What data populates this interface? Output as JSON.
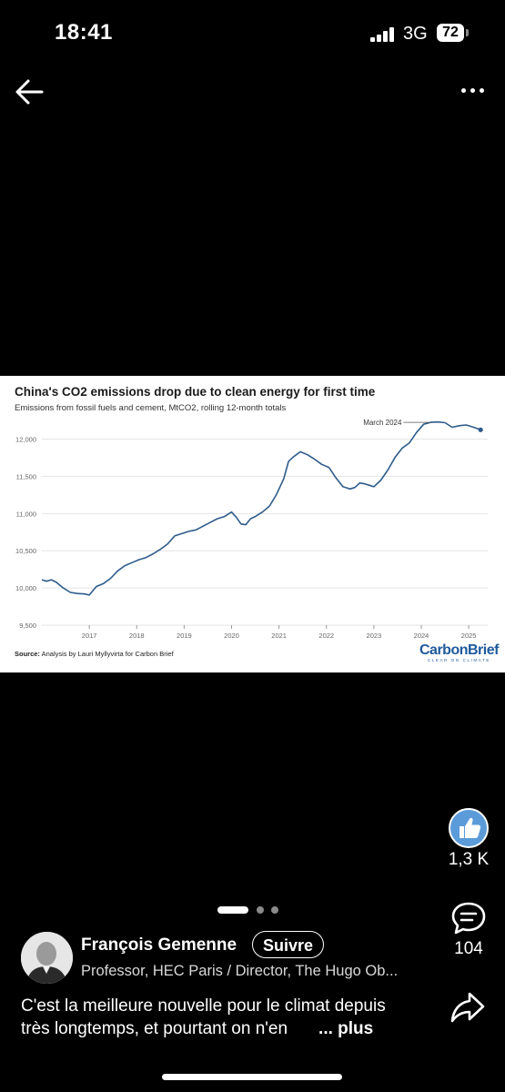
{
  "status_bar": {
    "time": "18:41",
    "network": "3G",
    "battery": "72"
  },
  "chart_card": {
    "title": "China's CO2 emissions drop due to clean energy for first time",
    "subtitle": "Emissions from fossil fuels and cement, MtCO2, rolling 12-month totals",
    "source_label": "Source:",
    "source_text": "Analysis by Lauri Myllyvirta for Carbon Brief",
    "logo_text": "CarbonBrief",
    "logo_tagline": "CLEAR ON CLIMATE",
    "line_color": "#2e5c8a"
  },
  "chart_data": {
    "type": "line",
    "title": "China's CO2 emissions drop due to clean energy for first time",
    "subtitle": "Emissions from fossil fuels and cement, MtCO2, rolling 12-month totals",
    "xlabel": "",
    "ylabel": "",
    "ylim": [
      9500,
      12300
    ],
    "xlim": [
      2016.0,
      2025.4
    ],
    "yticks": [
      9500,
      10000,
      10500,
      11000,
      11500,
      12000
    ],
    "ytick_labels": [
      "9,500",
      "10,000",
      "10,500",
      "11,000",
      "11,500",
      "12,000"
    ],
    "xticks": [
      2017,
      2018,
      2019,
      2020,
      2021,
      2022,
      2023,
      2024,
      2025
    ],
    "grid": true,
    "annotation": {
      "text": "March 2024",
      "x": 2024.2,
      "y": 12225
    },
    "series": [
      {
        "x": [
          2016.0,
          2016.1,
          2016.2,
          2016.3,
          2016.45,
          2016.6,
          2016.75,
          2016.9,
          2017.0,
          2017.15,
          2017.3,
          2017.45,
          2017.6,
          2017.75,
          2017.9,
          2018.05,
          2018.2,
          2018.35,
          2018.5,
          2018.65,
          2018.8,
          2018.95,
          2019.1,
          2019.25,
          2019.4,
          2019.55,
          2019.7,
          2019.85,
          2020.0,
          2020.1,
          2020.2,
          2020.3,
          2020.4,
          2020.5,
          2020.65,
          2020.8,
          2020.95,
          2021.1,
          2021.2,
          2021.3,
          2021.45,
          2021.6,
          2021.75,
          2021.9,
          2022.05,
          2022.2,
          2022.35,
          2022.5,
          2022.6,
          2022.7,
          2022.8,
          2022.9,
          2023.0,
          2023.15,
          2023.3,
          2023.45,
          2023.6,
          2023.75,
          2023.9,
          2024.05,
          2024.2,
          2024.35,
          2024.5,
          2024.65,
          2024.8,
          2024.95,
          2025.1,
          2025.25
        ],
        "y": [
          10110,
          10090,
          10110,
          10080,
          10000,
          9940,
          9925,
          9920,
          9905,
          10020,
          10060,
          10130,
          10230,
          10300,
          10340,
          10380,
          10410,
          10460,
          10520,
          10590,
          10700,
          10730,
          10760,
          10780,
          10830,
          10880,
          10930,
          10960,
          11020,
          10950,
          10860,
          10850,
          10930,
          10960,
          11020,
          11100,
          11260,
          11470,
          11700,
          11760,
          11830,
          11790,
          11730,
          11660,
          11620,
          11480,
          11360,
          11330,
          11350,
          11410,
          11400,
          11380,
          11360,
          11450,
          11590,
          11760,
          11880,
          11950,
          12090,
          12200,
          12225,
          12230,
          12220,
          12160,
          12180,
          12190,
          12160,
          12125
        ]
      }
    ]
  },
  "reactions": {
    "likes": "1,3 K",
    "comments": "104"
  },
  "author": {
    "name": "François Gemenne",
    "follow_label": "Suivre",
    "headline": "Professor, HEC Paris / Director, The Hugo Ob..."
  },
  "caption": {
    "line1": "C'est la meilleure nouvelle pour le climat depuis",
    "line2": "très longtemps, et pourtant on n'en",
    "more": "... plus"
  },
  "colors": {
    "like_blue": "#5b9bd9",
    "logo_blue": "#1f5a9b"
  },
  "icons": [
    "back-arrow-icon",
    "more-dots-icon",
    "like-icon",
    "comment-icon",
    "share-icon"
  ]
}
